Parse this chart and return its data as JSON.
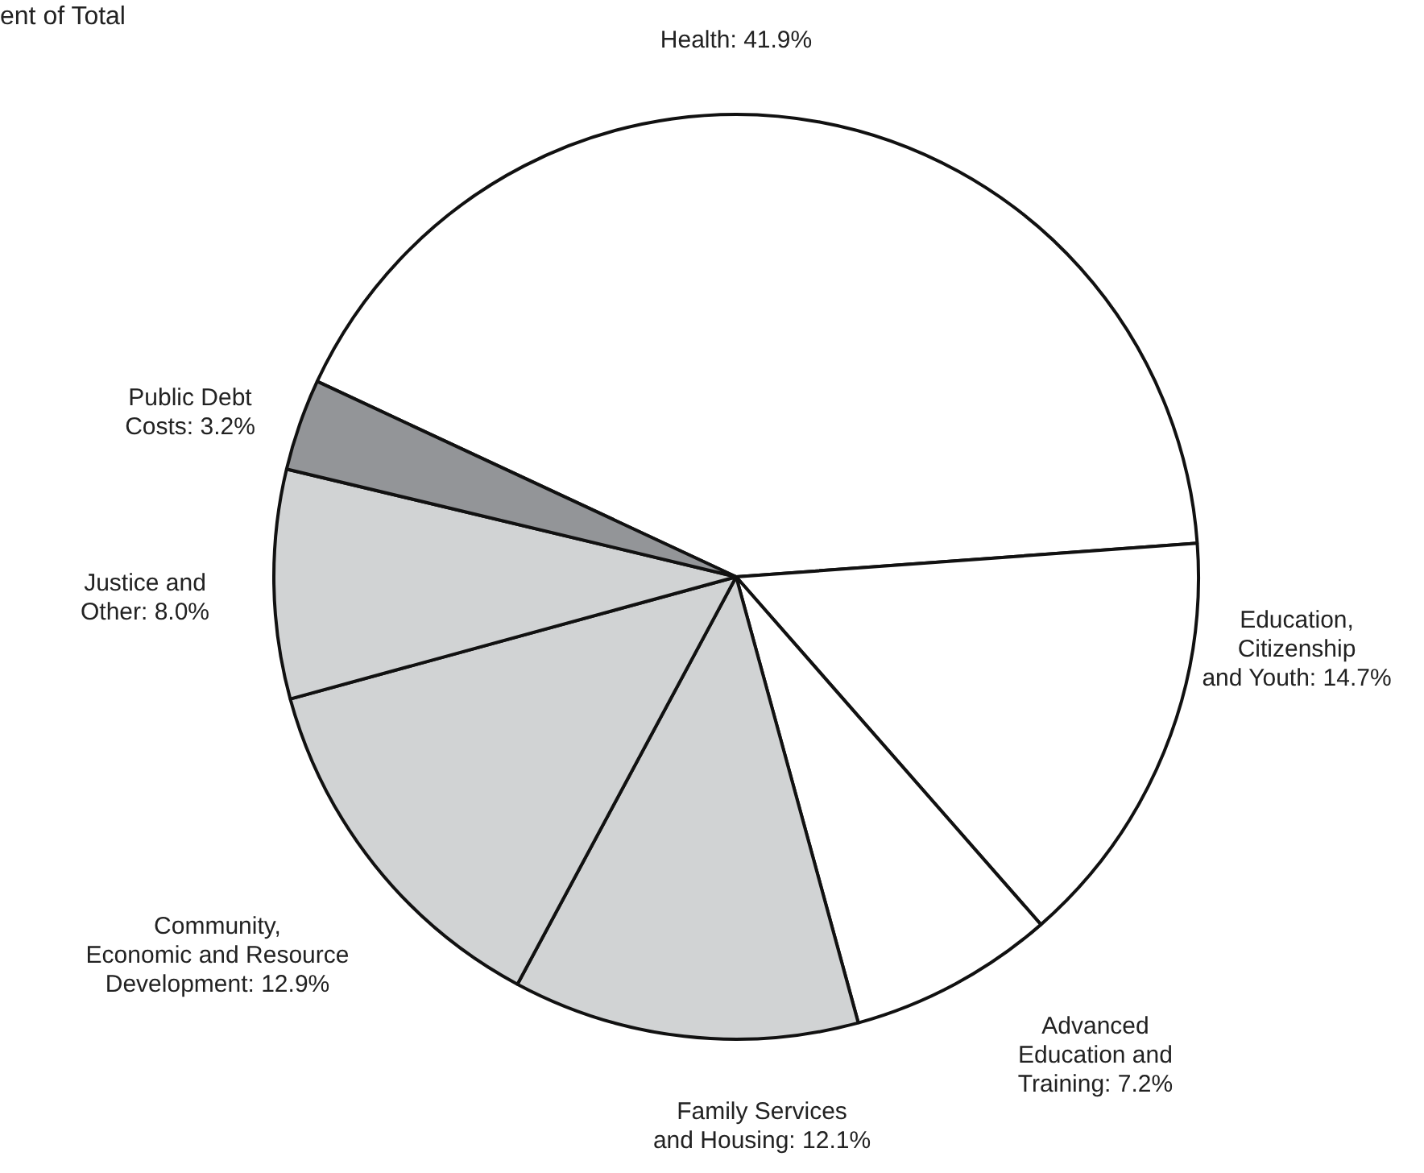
{
  "chart_data": {
    "type": "pie",
    "title": "ent of Total",
    "categories": [
      "Health",
      "Education, Citizenship and Youth",
      "Advanced Education and Training",
      "Family Services and Housing",
      "Community, Economic and Resource Development",
      "Justice and Other",
      "Public Debt Costs"
    ],
    "value_labels": [
      "41.9%",
      "14.7%",
      "7.2%",
      "12.1%",
      "12.9%",
      "8.0%",
      "3.2%"
    ],
    "values": [
      41.9,
      14.7,
      7.2,
      12.1,
      12.9,
      8.0,
      3.2
    ],
    "colors": [
      "#ffffff",
      "#ffffff",
      "#ffffff",
      "#d1d3d4",
      "#d1d3d4",
      "#d1d3d4",
      "#939598"
    ],
    "legend": false
  }
}
